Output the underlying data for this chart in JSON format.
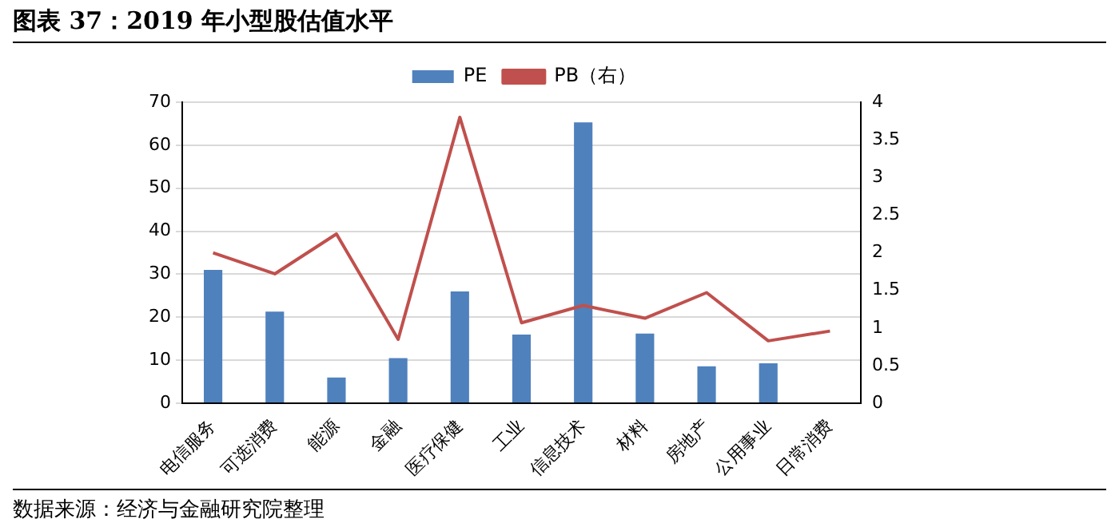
{
  "chart_data": {
    "type": "bar",
    "title": "图表 37：2019 年小型股估值水平",
    "annotations": [
      "数据来源：经济与金融研究院整理"
    ],
    "categories": [
      "电信服务",
      "可选消费",
      "能源",
      "金融",
      "医疗保健",
      "工业",
      "信息技术",
      "材料",
      "房地产",
      "公用事业",
      "日常消费"
    ],
    "series": [
      {
        "name": "PE",
        "color": "#4f81bd",
        "values": [
          31,
          21.3,
          6,
          10.5,
          26,
          16,
          65.3,
          16.2,
          8.6,
          9.3,
          null
        ]
      },
      {
        "name": "PB（右）",
        "type": "line",
        "axis": "y2",
        "color": "#c0504d",
        "values": [
          2.0,
          1.72,
          2.25,
          0.85,
          3.8,
          1.07,
          1.3,
          1.13,
          1.47,
          0.83,
          0.96
        ]
      }
    ],
    "ylim": [
      0,
      70
    ],
    "yticks": [
      0,
      10,
      20,
      30,
      40,
      50,
      60,
      70
    ],
    "y2lim": [
      0,
      4
    ],
    "y2ticks": [
      0,
      0.5,
      1,
      1.5,
      2,
      2.5,
      3,
      3.5,
      4
    ],
    "grid": "y",
    "legend": "top",
    "marker": "none"
  }
}
